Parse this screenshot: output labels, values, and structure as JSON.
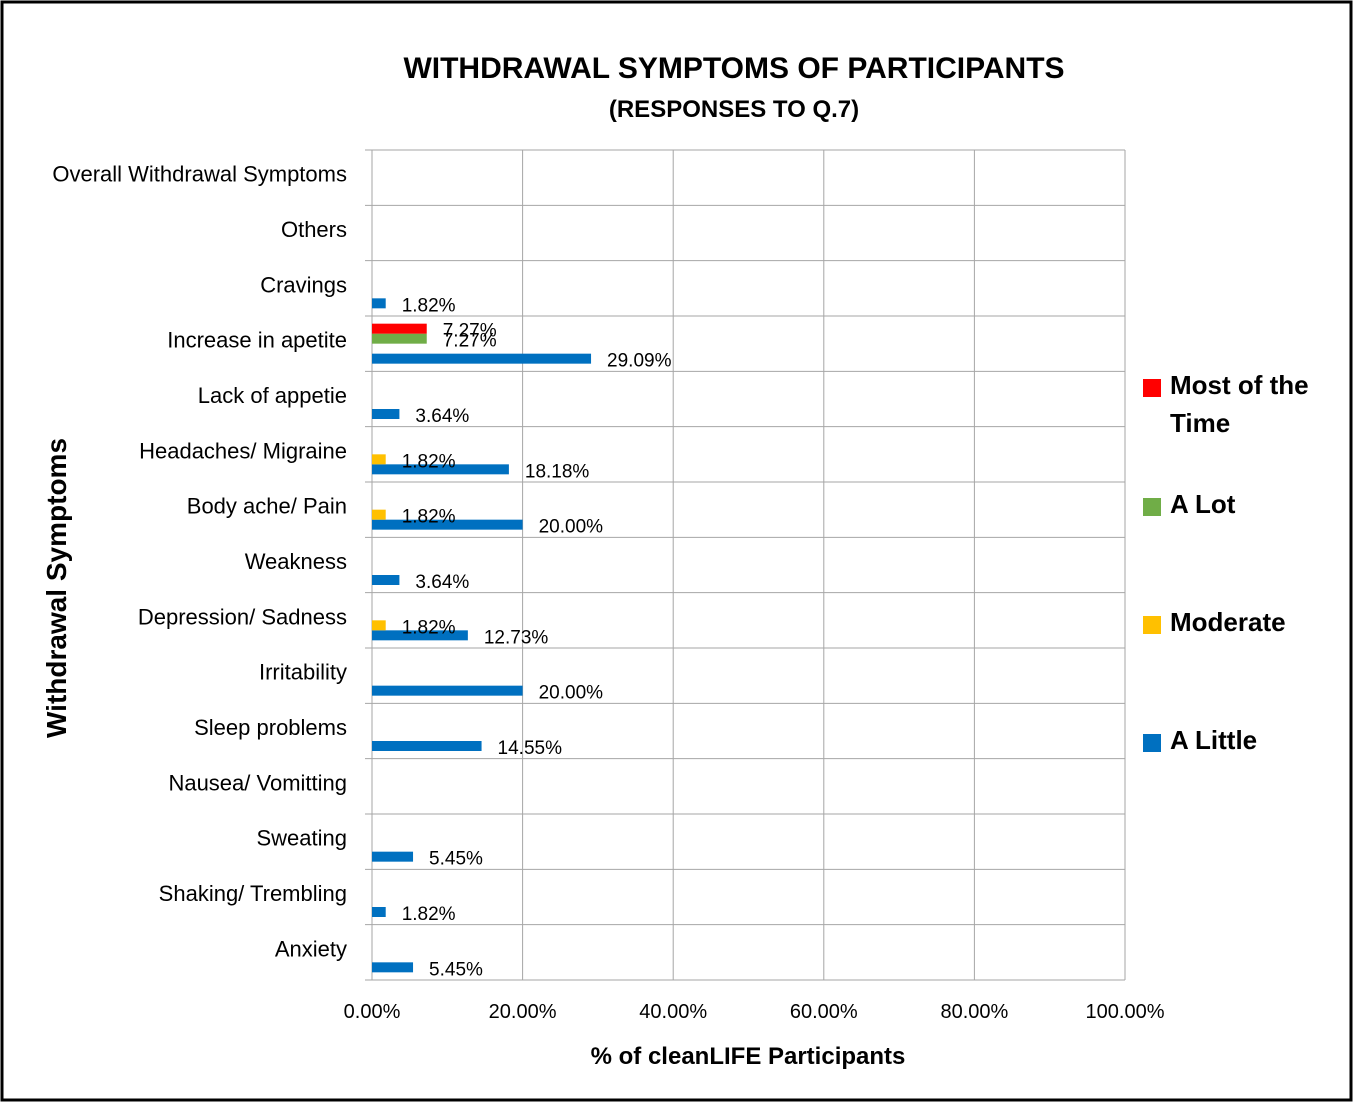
{
  "chart_data": {
    "type": "bar",
    "orientation": "horizontal",
    "title": "WITHDRAWAL SYMPTOMS OF PARTICIPANTS",
    "subtitle": "(RESPONSES TO Q.7)",
    "x_label": "% of cleanLIFE Participants",
    "y_label": "Withdrawal Symptoms",
    "categories": [
      "Anxiety",
      "Shaking/ Trembling",
      "Sweating",
      "Nausea/ Vomitting",
      "Sleep problems",
      "Irritability",
      "Depression/ Sadness",
      "Weakness",
      "Body ache/ Pain",
      "Headaches/ Migraine",
      "Lack of appetie",
      "Increase in apetite",
      "Cravings",
      "Others",
      "Overall Withdrawal Symptoms"
    ],
    "series": [
      {
        "name": "A Little",
        "color": "#0070c0",
        "values": [
          5.45,
          1.82,
          5.45,
          null,
          14.55,
          20.0,
          12.73,
          3.64,
          20.0,
          18.18,
          3.64,
          29.09,
          1.82,
          null,
          null
        ],
        "value_labels": [
          "5.45%",
          "1.82%",
          "5.45%",
          null,
          "14.55%",
          "20.00%",
          "12.73%",
          "3.64%",
          "20.00%",
          "18.18%",
          "3.64%",
          "29.09%",
          "1.82%",
          null,
          null
        ]
      },
      {
        "name": "Moderate",
        "color": "#ffc000",
        "values": [
          null,
          null,
          null,
          null,
          null,
          null,
          1.82,
          null,
          1.82,
          1.82,
          null,
          null,
          null,
          null,
          null
        ],
        "value_labels": [
          null,
          null,
          null,
          null,
          null,
          null,
          "1.82%",
          null,
          "1.82%",
          "1.82%",
          null,
          null,
          null,
          null,
          null
        ]
      },
      {
        "name": "A Lot",
        "color": "#70ad47",
        "values": [
          null,
          null,
          null,
          null,
          null,
          null,
          null,
          null,
          null,
          null,
          null,
          7.27,
          null,
          null,
          null
        ],
        "value_labels": [
          null,
          null,
          null,
          null,
          null,
          null,
          null,
          null,
          null,
          null,
          null,
          "7.27%",
          null,
          null,
          null
        ]
      },
      {
        "name": "Most of the Time",
        "color": "#ff0000",
        "values": [
          null,
          null,
          null,
          null,
          null,
          null,
          null,
          null,
          null,
          null,
          null,
          7.27,
          null,
          null,
          null
        ],
        "value_labels": [
          null,
          null,
          null,
          null,
          null,
          null,
          null,
          null,
          null,
          null,
          null,
          "7.27%",
          null,
          null,
          null
        ]
      }
    ],
    "xlim": [
      0,
      100
    ],
    "xticks": [
      {
        "value": 0,
        "label": "0.00%"
      },
      {
        "value": 20,
        "label": "20.00%"
      },
      {
        "value": 40,
        "label": "40.00%"
      },
      {
        "value": 60,
        "label": "60.00%"
      },
      {
        "value": 80,
        "label": "80.00%"
      },
      {
        "value": 100,
        "label": "100.00%"
      }
    ],
    "grid": true,
    "legend": "right"
  }
}
